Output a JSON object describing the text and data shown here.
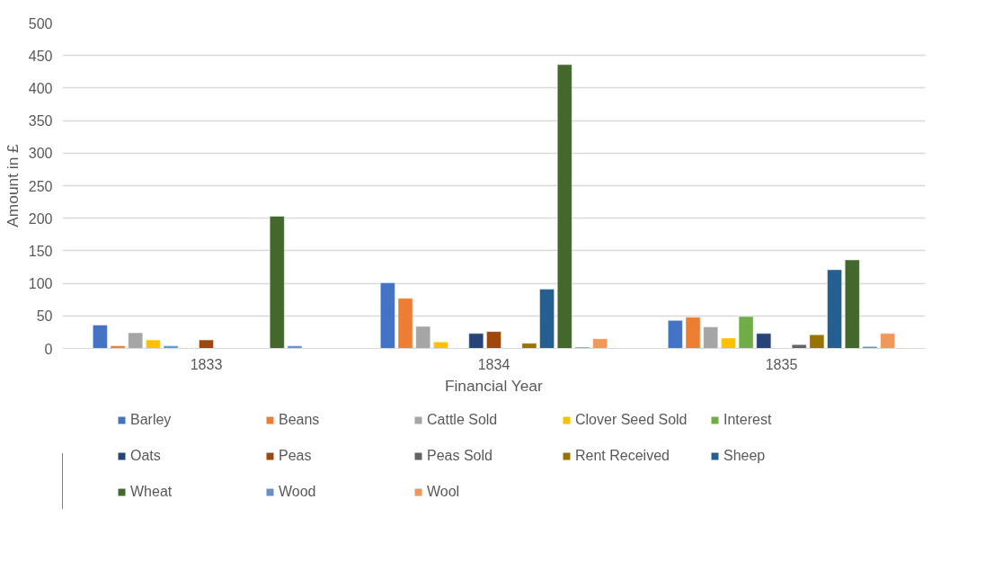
{
  "chart_data": {
    "type": "bar",
    "xlabel": "Financial Year",
    "ylabel": "Amount in £",
    "categories": [
      "1833",
      "1834",
      "1835"
    ],
    "ylim": [
      0,
      500
    ],
    "yticks": [
      0,
      50,
      100,
      150,
      200,
      250,
      300,
      350,
      400,
      450,
      500
    ],
    "grid": "y",
    "legend": "bottom",
    "series": [
      {
        "name": "Barley",
        "color": "#4472c4",
        "values": [
          36,
          101,
          43
        ]
      },
      {
        "name": "Beans",
        "color": "#ed7d31",
        "values": [
          4,
          77,
          48
        ]
      },
      {
        "name": "Cattle Sold",
        "color": "#a5a5a5",
        "values": [
          24,
          34,
          33
        ]
      },
      {
        "name": "Clover Seed Sold",
        "color": "#ffc000",
        "values": [
          13,
          10,
          16
        ]
      },
      {
        "name": "Interest",
        "color": "#70ad47",
        "colors": [
          "#5b9bd5",
          "#70ad47",
          "#70ad47"
        ],
        "values": [
          4,
          null,
          49
        ]
      },
      {
        "name": "Oats",
        "color": "#264478",
        "values": [
          null,
          23,
          23
        ]
      },
      {
        "name": "Peas",
        "color": "#9e480e",
        "values": [
          13,
          26,
          null
        ]
      },
      {
        "name": "Peas Sold",
        "color": "#636363",
        "values": [
          null,
          null,
          6
        ]
      },
      {
        "name": "Rent Received",
        "color": "#997300",
        "values": [
          null,
          8,
          21
        ]
      },
      {
        "name": "Sheep",
        "color": "#255e91",
        "values": [
          null,
          91,
          121
        ]
      },
      {
        "name": "Wheat",
        "color": "#43682b",
        "values": [
          203,
          436,
          136
        ]
      },
      {
        "name": "Wood",
        "color": "#698ed0",
        "values": [
          4,
          2,
          3
        ]
      },
      {
        "name": "Wool",
        "color": "#f1975a",
        "values": [
          null,
          15,
          23
        ]
      }
    ]
  }
}
